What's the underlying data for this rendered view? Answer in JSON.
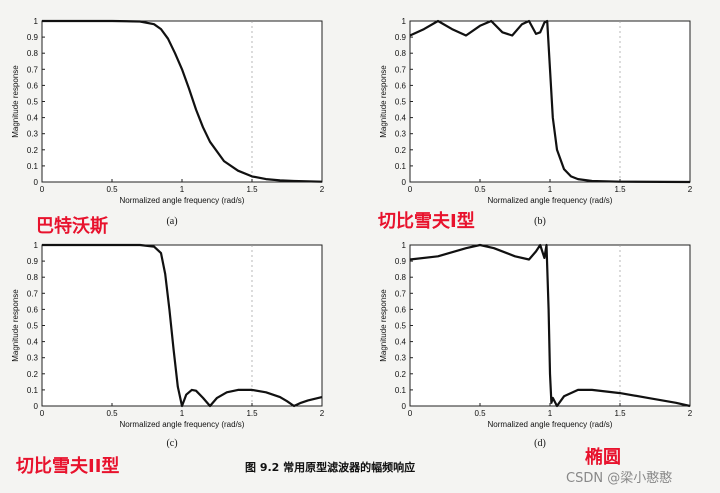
{
  "chart_data": [
    {
      "type": "line",
      "panel_label": "(a)",
      "filter_name": "巴特沃斯",
      "xlabel": "Normalized angle frequency (rad/s)",
      "ylabel": "Magnitude response",
      "xlim": [
        0,
        2
      ],
      "ylim": [
        0,
        1
      ],
      "xticks": [
        "0",
        "0.5",
        "1",
        "1.5",
        "2"
      ],
      "yticks": [
        "0",
        "0.1",
        "0.2",
        "0.3",
        "0.4",
        "0.5",
        "0.6",
        "0.7",
        "0.8",
        "0.9",
        "1"
      ],
      "grid": "dashed at x=1.5",
      "series": [
        {
          "x": [
            0,
            0.5,
            0.7,
            0.8,
            0.85,
            0.9,
            0.95,
            1.0,
            1.05,
            1.1,
            1.15,
            1.2,
            1.3,
            1.4,
            1.5,
            1.6,
            1.7,
            1.8,
            2.0
          ],
          "values": [
            1,
            1,
            0.997,
            0.98,
            0.95,
            0.89,
            0.8,
            0.7,
            0.58,
            0.45,
            0.34,
            0.25,
            0.13,
            0.07,
            0.035,
            0.018,
            0.01,
            0.006,
            0.002
          ]
        }
      ]
    },
    {
      "type": "line",
      "panel_label": "(b)",
      "filter_name": "切比雪夫I型",
      "xlabel": "Normalized angle frequency (rad/s)",
      "ylabel": "Magnitude response",
      "xlim": [
        0,
        2
      ],
      "ylim": [
        0,
        1
      ],
      "xticks": [
        "0",
        "0.5",
        "1",
        "1.5",
        "2"
      ],
      "yticks": [
        "0",
        "0.1",
        "0.2",
        "0.3",
        "0.4",
        "0.5",
        "0.6",
        "0.7",
        "0.8",
        "0.9",
        "1"
      ],
      "grid": "dashed at x=1.5",
      "series": [
        {
          "x": [
            0,
            0.1,
            0.2,
            0.3,
            0.4,
            0.5,
            0.58,
            0.66,
            0.73,
            0.8,
            0.85,
            0.9,
            0.93,
            0.96,
            0.98,
            1.0,
            1.02,
            1.05,
            1.1,
            1.15,
            1.2,
            1.3,
            1.5,
            2.0
          ],
          "values": [
            0.91,
            0.95,
            1.0,
            0.95,
            0.91,
            0.97,
            1.0,
            0.93,
            0.91,
            0.98,
            1.0,
            0.92,
            0.93,
            0.99,
            1.0,
            0.7,
            0.4,
            0.2,
            0.08,
            0.035,
            0.018,
            0.006,
            0.002,
            0.0
          ]
        }
      ]
    },
    {
      "type": "line",
      "panel_label": "(c)",
      "filter_name": "切比雪夫II型",
      "xlabel": "Normalized angle frequency (rad/s)",
      "ylabel": "Magnitude response",
      "xlim": [
        0,
        2
      ],
      "ylim": [
        0,
        1
      ],
      "xticks": [
        "0",
        "0.5",
        "1",
        "1.5",
        "2"
      ],
      "yticks": [
        "0",
        "0.1",
        "0.2",
        "0.3",
        "0.4",
        "0.5",
        "0.6",
        "0.7",
        "0.8",
        "0.9",
        "1"
      ],
      "grid": "dashed at x=1.5",
      "series": [
        {
          "x": [
            0,
            0.5,
            0.7,
            0.8,
            0.85,
            0.88,
            0.91,
            0.94,
            0.97,
            1.0,
            1.03,
            1.07,
            1.1,
            1.15,
            1.2,
            1.25,
            1.32,
            1.4,
            1.5,
            1.6,
            1.7,
            1.75,
            1.8,
            1.85,
            1.9,
            2.0
          ],
          "values": [
            1,
            1,
            1,
            0.99,
            0.95,
            0.82,
            0.6,
            0.35,
            0.12,
            0.0,
            0.07,
            0.1,
            0.095,
            0.05,
            0.0,
            0.05,
            0.085,
            0.1,
            0.1,
            0.085,
            0.055,
            0.03,
            0.0,
            0.02,
            0.035,
            0.055
          ]
        }
      ]
    },
    {
      "type": "line",
      "panel_label": "(d)",
      "filter_name": "椭圆",
      "xlabel": "Normalized angle frequency (rad/s)",
      "ylabel": "Magnitude response",
      "xlim": [
        0,
        2
      ],
      "ylim": [
        0,
        1
      ],
      "xticks": [
        "0",
        "0.5",
        "1",
        "1.5",
        "2"
      ],
      "yticks": [
        "0",
        "0.1",
        "0.2",
        "0.3",
        "0.4",
        "0.5",
        "0.6",
        "0.7",
        "0.8",
        "0.9",
        "1"
      ],
      "grid": "dashed at x=1.5",
      "series": [
        {
          "x": [
            0,
            0.2,
            0.4,
            0.5,
            0.6,
            0.75,
            0.85,
            0.9,
            0.93,
            0.96,
            0.975,
            0.99,
            1.0,
            1.01,
            1.02,
            1.05,
            1.1,
            1.2,
            1.3,
            1.5,
            1.7,
            1.9,
            2.0
          ],
          "values": [
            0.91,
            0.93,
            0.98,
            1.0,
            0.98,
            0.93,
            0.91,
            0.96,
            1.0,
            0.92,
            1.0,
            0.6,
            0.2,
            0.02,
            0.05,
            0.0,
            0.06,
            0.1,
            0.1,
            0.08,
            0.05,
            0.02,
            0.0
          ]
        }
      ]
    }
  ],
  "figure_caption": "图 9.2   常用原型滤波器的幅频响应",
  "watermark": "CSDN @梁小憨憨"
}
